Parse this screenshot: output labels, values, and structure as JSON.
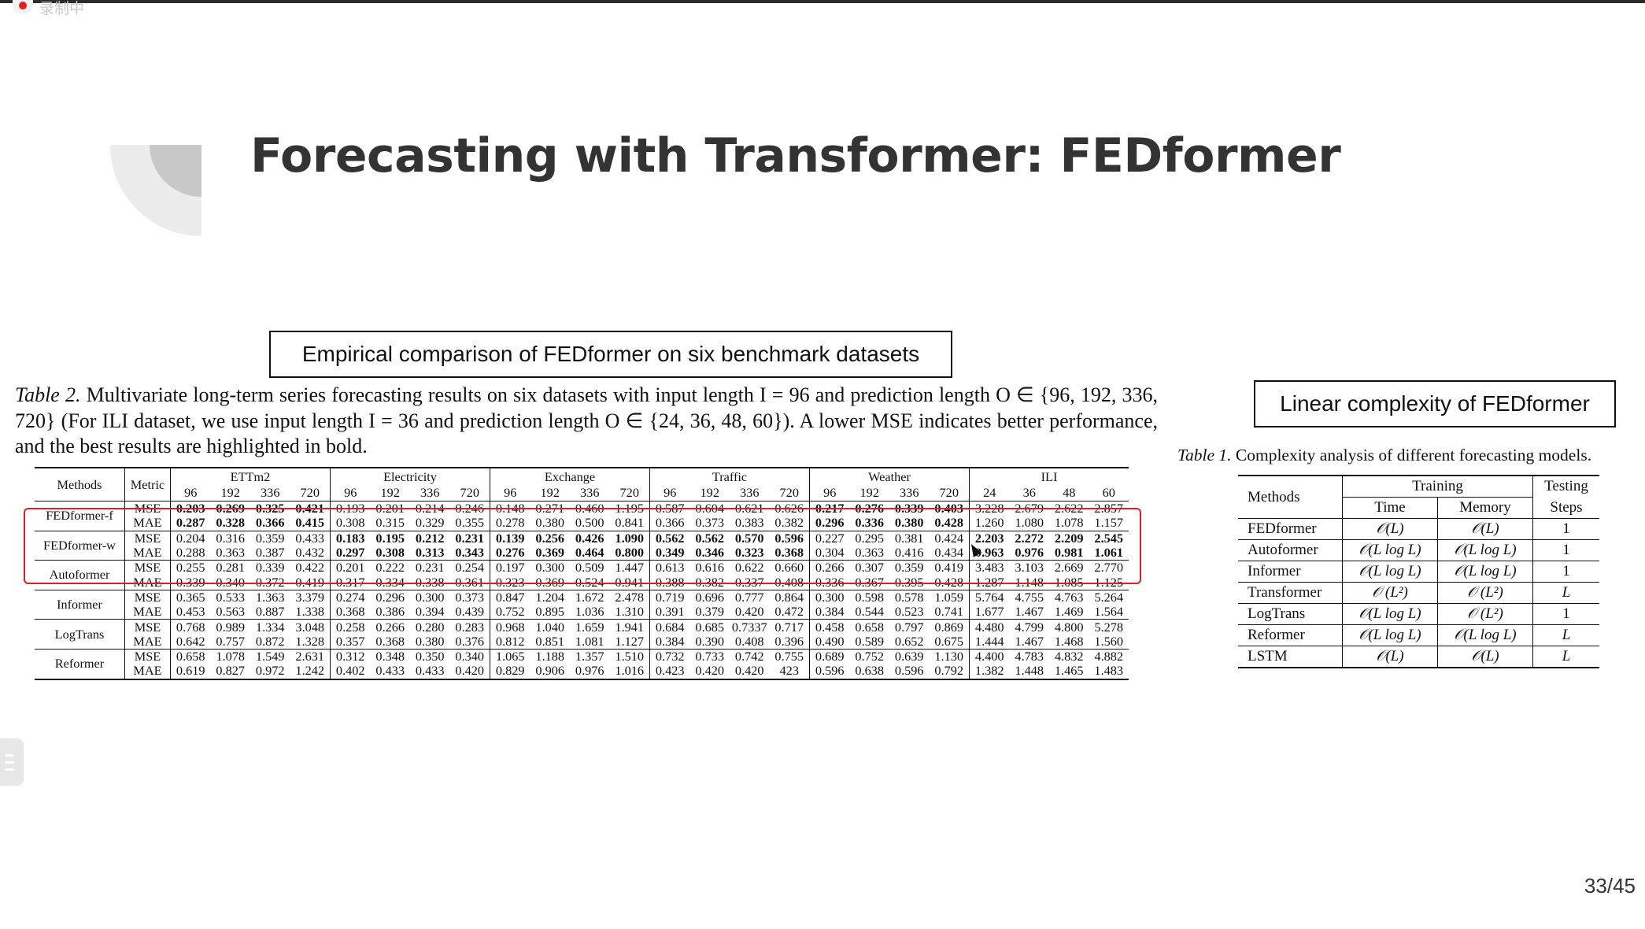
{
  "recording": {
    "label": "录制中"
  },
  "slide": {
    "title": "Forecasting with Transformer: FEDformer",
    "page": "33/45"
  },
  "left_box": {
    "label": "Empirical comparison of FEDformer on six benchmark datasets"
  },
  "right_box": {
    "label": "Linear complexity of FEDformer"
  },
  "table2": {
    "caption_label": "Table 2.",
    "caption_text": "Multivariate long-term series forecasting results on six datasets with input length I = 96 and prediction length O ∈ {96, 192, 336, 720} (For ILI dataset, we use input length I = 36 and prediction length O ∈ {24, 36, 48, 60}). A lower MSE indicates better performance, and the best results are highlighted in bold.",
    "header_methods": "Methods",
    "header_metric": "Metric",
    "datasets": [
      {
        "name": "ETTm2",
        "horizons": [
          "96",
          "192",
          "336",
          "720"
        ]
      },
      {
        "name": "Electricity",
        "horizons": [
          "96",
          "192",
          "336",
          "720"
        ]
      },
      {
        "name": "Exchange",
        "horizons": [
          "96",
          "192",
          "336",
          "720"
        ]
      },
      {
        "name": "Traffic",
        "horizons": [
          "96",
          "192",
          "336",
          "720"
        ]
      },
      {
        "name": "Weather",
        "horizons": [
          "96",
          "192",
          "336",
          "720"
        ]
      },
      {
        "name": "ILI",
        "horizons": [
          "24",
          "36",
          "48",
          "60"
        ]
      }
    ],
    "methods": [
      {
        "name": "FEDformer-f",
        "rows": [
          {
            "metric": "MSE",
            "values": [
              "0.203",
              "0.269",
              "0.325",
              "0.421",
              "0.193",
              "0.201",
              "0.214",
              "0.246",
              "0.148",
              "0.271",
              "0.460",
              "1.195",
              "0.587",
              "0.604",
              "0.621",
              "0.626",
              "0.217",
              "0.276",
              "0.339",
              "0.403",
              "3.228",
              "2.679",
              "2.622",
              "2.857"
            ],
            "bold": [
              true,
              true,
              true,
              true,
              false,
              false,
              false,
              false,
              false,
              false,
              false,
              false,
              false,
              false,
              false,
              false,
              true,
              true,
              true,
              true,
              false,
              false,
              false,
              false
            ]
          },
          {
            "metric": "MAE",
            "values": [
              "0.287",
              "0.328",
              "0.366",
              "0.415",
              "0.308",
              "0.315",
              "0.329",
              "0.355",
              "0.278",
              "0.380",
              "0.500",
              "0.841",
              "0.366",
              "0.373",
              "0.383",
              "0.382",
              "0.296",
              "0.336",
              "0.380",
              "0.428",
              "1.260",
              "1.080",
              "1.078",
              "1.157"
            ],
            "bold": [
              true,
              true,
              true,
              true,
              false,
              false,
              false,
              false,
              false,
              false,
              false,
              false,
              false,
              false,
              false,
              false,
              true,
              true,
              true,
              true,
              false,
              false,
              false,
              false
            ]
          }
        ]
      },
      {
        "name": "FEDformer-w",
        "rows": [
          {
            "metric": "MSE",
            "values": [
              "0.204",
              "0.316",
              "0.359",
              "0.433",
              "0.183",
              "0.195",
              "0.212",
              "0.231",
              "0.139",
              "0.256",
              "0.426",
              "1.090",
              "0.562",
              "0.562",
              "0.570",
              "0.596",
              "0.227",
              "0.295",
              "0.381",
              "0.424",
              "2.203",
              "2.272",
              "2.209",
              "2.545"
            ],
            "bold": [
              false,
              false,
              false,
              false,
              true,
              true,
              true,
              true,
              true,
              true,
              true,
              true,
              true,
              true,
              true,
              true,
              false,
              false,
              false,
              false,
              true,
              true,
              true,
              true
            ]
          },
          {
            "metric": "MAE",
            "values": [
              "0.288",
              "0.363",
              "0.387",
              "0.432",
              "0.297",
              "0.308",
              "0.313",
              "0.343",
              "0.276",
              "0.369",
              "0.464",
              "0.800",
              "0.349",
              "0.346",
              "0.323",
              "0.368",
              "0.304",
              "0.363",
              "0.416",
              "0.434",
              "0.963",
              "0.976",
              "0.981",
              "1.061"
            ],
            "bold": [
              false,
              false,
              false,
              false,
              true,
              true,
              true,
              true,
              true,
              true,
              true,
              true,
              true,
              true,
              true,
              true,
              false,
              false,
              false,
              false,
              true,
              true,
              true,
              true
            ]
          }
        ]
      },
      {
        "name": "Autoformer",
        "rows": [
          {
            "metric": "MSE",
            "values": [
              "0.255",
              "0.281",
              "0.339",
              "0.422",
              "0.201",
              "0.222",
              "0.231",
              "0.254",
              "0.197",
              "0.300",
              "0.509",
              "1.447",
              "0.613",
              "0.616",
              "0.622",
              "0.660",
              "0.266",
              "0.307",
              "0.359",
              "0.419",
              "3.483",
              "3.103",
              "2.669",
              "2.770"
            ]
          },
          {
            "metric": "MAE",
            "values": [
              "0.339",
              "0.340",
              "0.372",
              "0.419",
              "0.317",
              "0.334",
              "0.338",
              "0.361",
              "0.323",
              "0.369",
              "0.524",
              "0.941",
              "0.388",
              "0.382",
              "0.337",
              "0.408",
              "0.336",
              "0.367",
              "0.395",
              "0.428",
              "1.287",
              "1.148",
              "1.085",
              "1.125"
            ]
          }
        ]
      },
      {
        "name": "Informer",
        "rows": [
          {
            "metric": "MSE",
            "values": [
              "0.365",
              "0.533",
              "1.363",
              "3.379",
              "0.274",
              "0.296",
              "0.300",
              "0.373",
              "0.847",
              "1.204",
              "1.672",
              "2.478",
              "0.719",
              "0.696",
              "0.777",
              "0.864",
              "0.300",
              "0.598",
              "0.578",
              "1.059",
              "5.764",
              "4.755",
              "4.763",
              "5.264"
            ]
          },
          {
            "metric": "MAE",
            "values": [
              "0.453",
              "0.563",
              "0.887",
              "1.338",
              "0.368",
              "0.386",
              "0.394",
              "0.439",
              "0.752",
              "0.895",
              "1.036",
              "1.310",
              "0.391",
              "0.379",
              "0.420",
              "0.472",
              "0.384",
              "0.544",
              "0.523",
              "0.741",
              "1.677",
              "1.467",
              "1.469",
              "1.564"
            ]
          }
        ]
      },
      {
        "name": "LogTrans",
        "rows": [
          {
            "metric": "MSE",
            "values": [
              "0.768",
              "0.989",
              "1.334",
              "3.048",
              "0.258",
              "0.266",
              "0.280",
              "0.283",
              "0.968",
              "1.040",
              "1.659",
              "1.941",
              "0.684",
              "0.685",
              "0.7337",
              "0.717",
              "0.458",
              "0.658",
              "0.797",
              "0.869",
              "4.480",
              "4.799",
              "4.800",
              "5.278"
            ]
          },
          {
            "metric": "MAE",
            "values": [
              "0.642",
              "0.757",
              "0.872",
              "1.328",
              "0.357",
              "0.368",
              "0.380",
              "0.376",
              "0.812",
              "0.851",
              "1.081",
              "1.127",
              "0.384",
              "0.390",
              "0.408",
              "0.396",
              "0.490",
              "0.589",
              "0.652",
              "0.675",
              "1.444",
              "1.467",
              "1.468",
              "1.560"
            ]
          }
        ]
      },
      {
        "name": "Reformer",
        "rows": [
          {
            "metric": "MSE",
            "values": [
              "0.658",
              "1.078",
              "1.549",
              "2.631",
              "0.312",
              "0.348",
              "0.350",
              "0.340",
              "1.065",
              "1.188",
              "1.357",
              "1.510",
              "0.732",
              "0.733",
              "0.742",
              "0.755",
              "0.689",
              "0.752",
              "0.639",
              "1.130",
              "4.400",
              "4.783",
              "4.832",
              "4.882"
            ]
          },
          {
            "metric": "MAE",
            "values": [
              "0.619",
              "0.827",
              "0.972",
              "1.242",
              "0.402",
              "0.433",
              "0.433",
              "0.420",
              "0.829",
              "0.906",
              "0.976",
              "1.016",
              "0.423",
              "0.420",
              "0.420",
              "423",
              "0.596",
              "0.638",
              "0.596",
              "0.792",
              "1.382",
              "1.448",
              "1.465",
              "1.483"
            ]
          }
        ]
      }
    ]
  },
  "table1": {
    "caption_label": "Table 1.",
    "caption_text": "Complexity analysis of different forecasting models.",
    "header": {
      "methods": "Methods",
      "training": "Training",
      "testing": "Testing",
      "time": "Time",
      "memory": "Memory",
      "steps": "Steps"
    },
    "rows": [
      {
        "method": "FEDformer",
        "time": "𝒪(L)",
        "memory": "𝒪(L)",
        "steps": "1"
      },
      {
        "method": "Autoformer",
        "time": "𝒪(L log L)",
        "memory": "𝒪(L log L)",
        "steps": "1"
      },
      {
        "method": "Informer",
        "time": "𝒪(L log L)",
        "memory": "𝒪(L log L)",
        "steps": "1"
      },
      {
        "method": "Transformer",
        "time": "𝒪 (L²)",
        "memory": "𝒪 (L²)",
        "steps": "L"
      },
      {
        "method": "LogTrans",
        "time": "𝒪(L log L)",
        "memory": "𝒪 (L²)",
        "steps": "1"
      },
      {
        "method": "Reformer",
        "time": "𝒪(L log L)",
        "memory": "𝒪(L log L)",
        "steps": "L"
      },
      {
        "method": "LSTM",
        "time": "𝒪(L)",
        "memory": "𝒪(L)",
        "steps": "L"
      }
    ]
  },
  "colors": {
    "highlight_box": "#d8202a",
    "title": "#333333",
    "deco_gray": "#c8c8c8"
  }
}
